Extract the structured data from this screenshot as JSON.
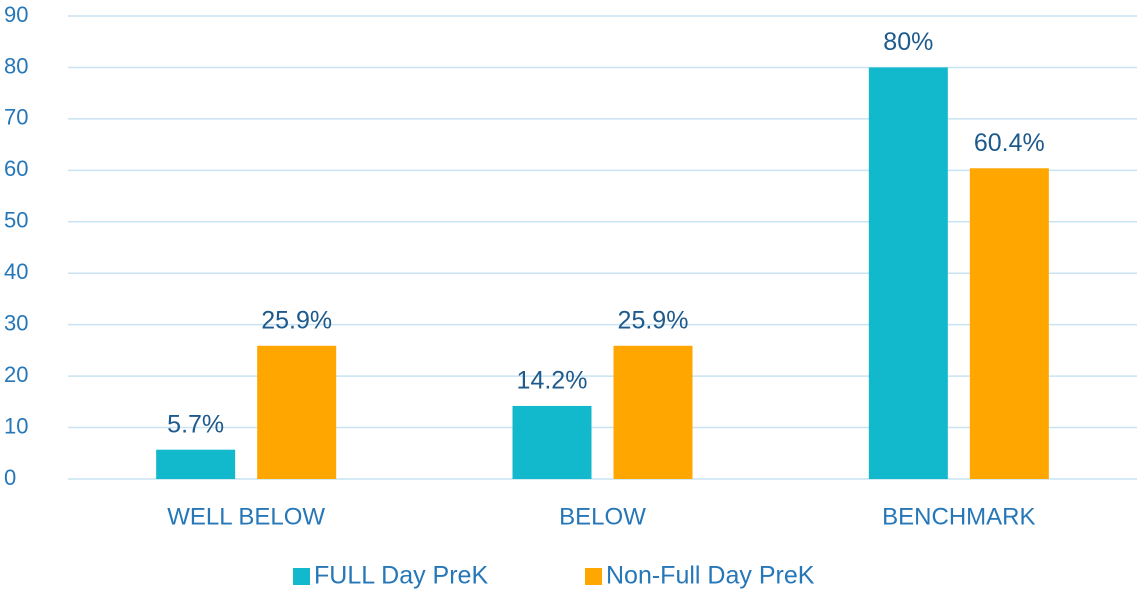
{
  "chart_data": {
    "type": "bar",
    "categories": [
      "WELL BELOW",
      "BELOW",
      "BENCHMARK"
    ],
    "series": [
      {
        "name": "FULL Day PreK",
        "color": "#12b8cc",
        "values": [
          5.7,
          14.2,
          80
        ],
        "value_labels": [
          "5.7%",
          "14.2%",
          "80%"
        ]
      },
      {
        "name": "Non-Full Day PreK",
        "color": "#ffa600",
        "values": [
          25.9,
          25.9,
          60.4
        ],
        "value_labels": [
          "25.9%",
          "25.9%",
          "60.4%"
        ]
      }
    ],
    "ylim": [
      0,
      90
    ],
    "yticks": [
      0,
      10,
      20,
      30,
      40,
      50,
      60,
      70,
      80,
      90
    ],
    "grid": true,
    "legend": "bottom"
  }
}
